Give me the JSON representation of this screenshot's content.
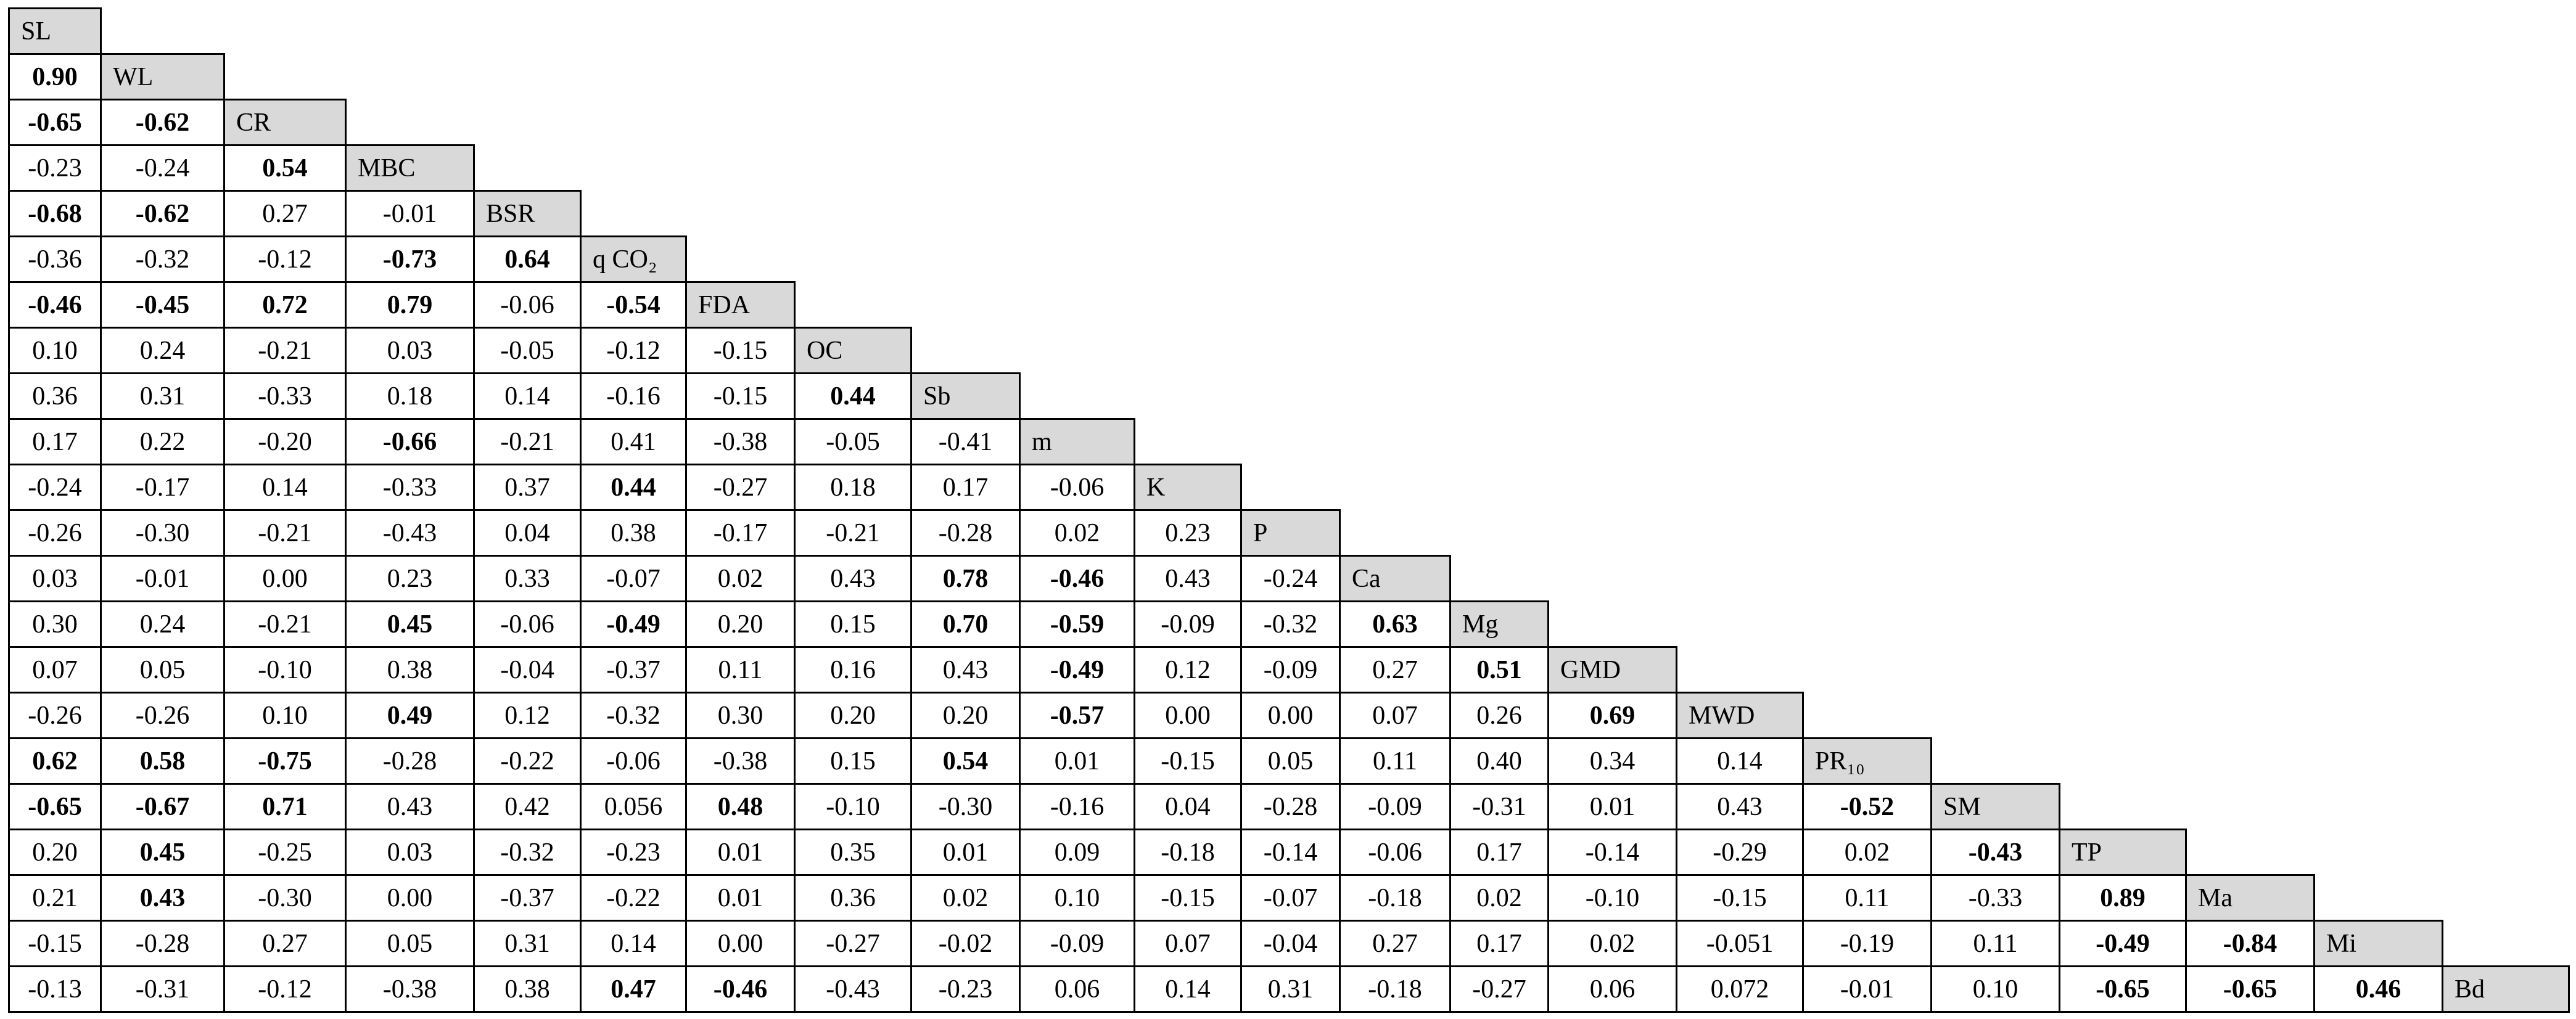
{
  "table": {
    "rows": [
      {
        "label": "SL",
        "cells": [],
        "bold": []
      },
      {
        "label": "WL",
        "cells": [
          "0.90"
        ],
        "bold": [
          0
        ]
      },
      {
        "label": "CR",
        "cells": [
          "-0.65",
          "-0.62"
        ],
        "bold": [
          0,
          1
        ]
      },
      {
        "label": "MBC",
        "cells": [
          "-0.23",
          "-0.24",
          "0.54"
        ],
        "bold": [
          2
        ]
      },
      {
        "label": "BSR",
        "cells": [
          "-0.68",
          "-0.62",
          "0.27",
          "-0.01"
        ],
        "bold": [
          0,
          1
        ]
      },
      {
        "label": "q CO₂",
        "cells": [
          "-0.36",
          "-0.32",
          "-0.12",
          "-0.73",
          "0.64"
        ],
        "bold": [
          3,
          4
        ]
      },
      {
        "label": "FDA",
        "cells": [
          "-0.46",
          "-0.45",
          "0.72",
          "0.79",
          "-0.06",
          "-0.54"
        ],
        "bold": [
          0,
          1,
          2,
          3,
          5
        ]
      },
      {
        "label": "OC",
        "cells": [
          "0.10",
          "0.24",
          "-0.21",
          "0.03",
          "-0.05",
          "-0.12",
          "-0.15"
        ],
        "bold": []
      },
      {
        "label": "Sb",
        "cells": [
          "0.36",
          "0.31",
          "-0.33",
          "0.18",
          "0.14",
          "-0.16",
          "-0.15",
          "0.44"
        ],
        "bold": [
          7
        ]
      },
      {
        "label": "m",
        "cells": [
          "0.17",
          "0.22",
          "-0.20",
          "-0.66",
          "-0.21",
          "0.41",
          "-0.38",
          "-0.05",
          "-0.41"
        ],
        "bold": [
          3
        ]
      },
      {
        "label": "K",
        "cells": [
          "-0.24",
          "-0.17",
          "0.14",
          "-0.33",
          "0.37",
          "0.44",
          "-0.27",
          "0.18",
          "0.17",
          "-0.06"
        ],
        "bold": [
          5
        ]
      },
      {
        "label": "P",
        "cells": [
          "-0.26",
          "-0.30",
          "-0.21",
          "-0.43",
          "0.04",
          "0.38",
          "-0.17",
          "-0.21",
          "-0.28",
          "0.02",
          "0.23"
        ],
        "bold": []
      },
      {
        "label": "Ca",
        "cells": [
          "0.03",
          "-0.01",
          "0.00",
          "0.23",
          "0.33",
          "-0.07",
          "0.02",
          "0.43",
          "0.78",
          "-0.46",
          "0.43",
          "-0.24"
        ],
        "bold": [
          8,
          9
        ]
      },
      {
        "label": "Mg",
        "cells": [
          "0.30",
          "0.24",
          "-0.21",
          "0.45",
          "-0.06",
          "-0.49",
          "0.20",
          "0.15",
          "0.70",
          "-0.59",
          "-0.09",
          "-0.32",
          "0.63"
        ],
        "bold": [
          3,
          5,
          8,
          9,
          12
        ]
      },
      {
        "label": "GMD",
        "cells": [
          "0.07",
          "0.05",
          "-0.10",
          "0.38",
          "-0.04",
          "-0.37",
          "0.11",
          "0.16",
          "0.43",
          "-0.49",
          "0.12",
          "-0.09",
          "0.27",
          "0.51"
        ],
        "bold": [
          9,
          13
        ]
      },
      {
        "label": "MWD",
        "cells": [
          "-0.26",
          "-0.26",
          "0.10",
          "0.49",
          "0.12",
          "-0.32",
          "0.30",
          "0.20",
          "0.20",
          "-0.57",
          "0.00",
          "0.00",
          "0.07",
          "0.26",
          "0.69"
        ],
        "bold": [
          3,
          9,
          14
        ]
      },
      {
        "label": "PR₁₀",
        "cells": [
          "0.62",
          "0.58",
          "-0.75",
          "-0.28",
          "-0.22",
          "-0.06",
          "-0.38",
          "0.15",
          "0.54",
          "0.01",
          "-0.15",
          "0.05",
          "0.11",
          "0.40",
          "0.34",
          "0.14"
        ],
        "bold": [
          0,
          1,
          2,
          8
        ]
      },
      {
        "label": "SM",
        "cells": [
          "-0.65",
          "-0.67",
          "0.71",
          "0.43",
          "0.42",
          "0.056",
          "0.48",
          "-0.10",
          "-0.30",
          "-0.16",
          "0.04",
          "-0.28",
          "-0.09",
          "-0.31",
          "0.01",
          "0.43",
          "-0.52"
        ],
        "bold": [
          0,
          1,
          2,
          6,
          16
        ]
      },
      {
        "label": "TP",
        "cells": [
          "0.20",
          "0.45",
          "-0.25",
          "0.03",
          "-0.32",
          "-0.23",
          "0.01",
          "0.35",
          "0.01",
          "0.09",
          "-0.18",
          "-0.14",
          "-0.06",
          "0.17",
          "-0.14",
          "-0.29",
          "0.02",
          "-0.43"
        ],
        "bold": [
          1,
          17
        ]
      },
      {
        "label": "Ma",
        "cells": [
          "0.21",
          "0.43",
          "-0.30",
          "0.00",
          "-0.37",
          "-0.22",
          "0.01",
          "0.36",
          "0.02",
          "0.10",
          "-0.15",
          "-0.07",
          "-0.18",
          "0.02",
          "-0.10",
          "-0.15",
          "0.11",
          "-0.33",
          "0.89"
        ],
        "bold": [
          1,
          18
        ]
      },
      {
        "label": "Mi",
        "cells": [
          "-0.15",
          "-0.28",
          "0.27",
          "0.05",
          "0.31",
          "0.14",
          "0.00",
          "-0.27",
          "-0.02",
          "-0.09",
          "0.07",
          "-0.04",
          "0.27",
          "0.17",
          "0.02",
          "-0.051",
          "-0.19",
          "0.11",
          "-0.49",
          "-0.84"
        ],
        "bold": [
          18,
          19
        ]
      },
      {
        "label": "Bd",
        "cells": [
          "-0.13",
          "-0.31",
          "-0.12",
          "-0.38",
          "0.38",
          "0.47",
          "-0.46",
          "-0.43",
          "-0.23",
          "0.06",
          "0.14",
          "0.31",
          "-0.18",
          "-0.27",
          "0.06",
          "0.072",
          "-0.01",
          "0.10",
          "-0.65",
          "-0.65",
          "0.46"
        ],
        "bold": [
          5,
          6,
          18,
          19,
          20
        ]
      }
    ]
  }
}
